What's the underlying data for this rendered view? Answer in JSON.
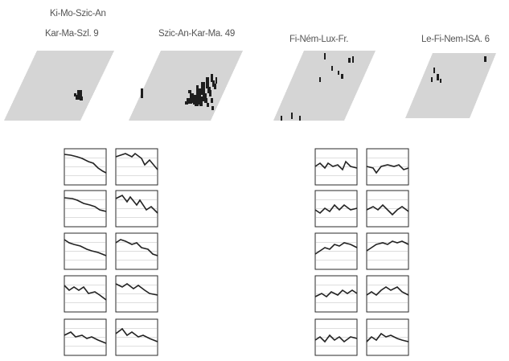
{
  "plots": [
    {
      "label_lines": [
        "Ki-Mo-Szic-An",
        "Kar-Ma-Szl. 9"
      ],
      "marks": 4
    },
    {
      "label_lines": [
        "Szic-An-Kar-Ma. 49"
      ],
      "marks": 26
    },
    {
      "label_lines": [
        "Fi-Ném-Lux-Fr."
      ],
      "marks": 10
    },
    {
      "label_lines": [
        "Le-Fi-Nem-ISA. 6"
      ],
      "marks": 5
    }
  ],
  "panel_groups": [
    {
      "name": "left",
      "rows": 5,
      "cols": 2
    },
    {
      "name": "right",
      "rows": 5,
      "cols": 2
    }
  ]
}
